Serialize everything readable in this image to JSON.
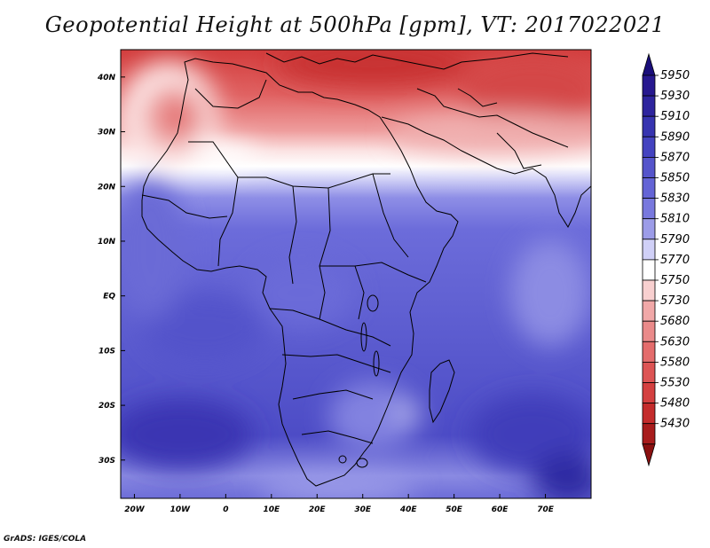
{
  "header": {
    "title": "Geopotential Height at 500hPa [gpm], VT: 2017022021"
  },
  "map": {
    "variable": "Geopotential Height at 500hPa",
    "units": "gpm",
    "lon_range": [
      -23,
      80
    ],
    "lat_range": [
      -37,
      45
    ],
    "lon_ticks": [
      {
        "value": -20,
        "label": "20W"
      },
      {
        "value": -10,
        "label": "10W"
      },
      {
        "value": 0,
        "label": "0"
      },
      {
        "value": 10,
        "label": "10E"
      },
      {
        "value": 20,
        "label": "20E"
      },
      {
        "value": 30,
        "label": "30E"
      },
      {
        "value": 40,
        "label": "40E"
      },
      {
        "value": 50,
        "label": "50E"
      },
      {
        "value": 60,
        "label": "60E"
      },
      {
        "value": 70,
        "label": "70E"
      }
    ],
    "lat_ticks": [
      {
        "value": 40,
        "label": "40N"
      },
      {
        "value": 30,
        "label": "30N"
      },
      {
        "value": 20,
        "label": "20N"
      },
      {
        "value": 10,
        "label": "10N"
      },
      {
        "value": 0,
        "label": "EQ"
      },
      {
        "value": -10,
        "label": "10S"
      },
      {
        "value": -20,
        "label": "20S"
      },
      {
        "value": -30,
        "label": "30S"
      }
    ]
  },
  "colorbar": {
    "levels": [
      {
        "label": "5950",
        "color": "#27188f"
      },
      {
        "label": "5930",
        "color": "#2e249e"
      },
      {
        "label": "5910",
        "color": "#3734b0"
      },
      {
        "label": "5890",
        "color": "#4443c0"
      },
      {
        "label": "5870",
        "color": "#5554cb"
      },
      {
        "label": "5850",
        "color": "#6464d6"
      },
      {
        "label": "5830",
        "color": "#7878de"
      },
      {
        "label": "5810",
        "color": "#9c9ce8"
      },
      {
        "label": "5790",
        "color": "#d0d0f7"
      },
      {
        "label": "5770",
        "color": "#ffffff"
      },
      {
        "label": "5750",
        "color": "#f8d0d0"
      },
      {
        "label": "5730",
        "color": "#f1a8a8"
      },
      {
        "label": "5680",
        "color": "#ea8a8a"
      },
      {
        "label": "5630",
        "color": "#e46c6c"
      },
      {
        "label": "5580",
        "color": "#dd5454"
      },
      {
        "label": "5530",
        "color": "#d44040"
      },
      {
        "label": "5480",
        "color": "#c42c2c"
      },
      {
        "label": "5430",
        "color": "#a81c1c"
      }
    ],
    "top_arrow_color": "#1a0e7a",
    "bottom_arrow_color": "#8a1010"
  },
  "footer": {
    "credit": "GrADS: IGES/COLA"
  }
}
